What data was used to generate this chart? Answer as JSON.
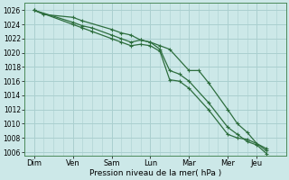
{
  "background_color": "#cce8e8",
  "grid_color": "#aacfcf",
  "line_color": "#2d6e3e",
  "x_labels": [
    "Dim",
    "Ven",
    "Sam",
    "Lun",
    "Mar",
    "Mer",
    "Jeu"
  ],
  "x_tick_pos": [
    0,
    2,
    4,
    6,
    8,
    10,
    11.5
  ],
  "x_minor_spacing": 0.5,
  "xlabel": "Pression niveau de la mer( hPa )",
  "ylim": [
    1005.5,
    1027.0
  ],
  "yticks": [
    1006,
    1008,
    1010,
    1012,
    1014,
    1016,
    1018,
    1020,
    1022,
    1024,
    1026
  ],
  "line1": {
    "x": [
      0.0,
      0.5,
      2.0,
      2.5,
      4.0,
      4.5,
      5.0,
      5.5,
      6.0,
      6.5,
      7.0,
      8.0,
      8.5,
      9.0,
      10.0,
      10.5,
      11.0,
      11.5,
      12.0
    ],
    "y": [
      1026.0,
      1025.4,
      1025.0,
      1024.5,
      1023.3,
      1022.8,
      1022.5,
      1021.8,
      1021.5,
      1021.0,
      1020.5,
      1017.5,
      1017.5,
      1015.8,
      1012.0,
      1010.0,
      1008.8,
      1007.2,
      1006.2
    ]
  },
  "line2": {
    "x": [
      0.0,
      2.0,
      2.5,
      3.0,
      4.0,
      4.5,
      5.0,
      5.5,
      6.0,
      6.5,
      7.0,
      7.5,
      8.0,
      9.0,
      10.0,
      10.5,
      11.0,
      11.5,
      12.0
    ],
    "y": [
      1026.0,
      1024.3,
      1023.8,
      1023.5,
      1022.5,
      1022.0,
      1021.5,
      1021.8,
      1021.5,
      1020.5,
      1017.5,
      1017.0,
      1016.0,
      1013.0,
      1009.5,
      1008.5,
      1007.5,
      1007.0,
      1005.8
    ]
  },
  "line3": {
    "x": [
      0.0,
      2.0,
      2.5,
      3.0,
      4.0,
      4.5,
      5.0,
      5.5,
      6.0,
      6.5,
      7.0,
      7.5,
      8.0,
      9.0,
      10.0,
      10.5,
      11.0,
      11.5,
      12.0
    ],
    "y": [
      1026.0,
      1024.0,
      1023.5,
      1023.0,
      1022.0,
      1021.5,
      1021.0,
      1021.2,
      1021.0,
      1020.2,
      1016.2,
      1016.0,
      1015.0,
      1012.0,
      1008.5,
      1008.0,
      1007.8,
      1007.2,
      1006.5
    ]
  },
  "xlim": [
    -0.5,
    13.0
  ]
}
